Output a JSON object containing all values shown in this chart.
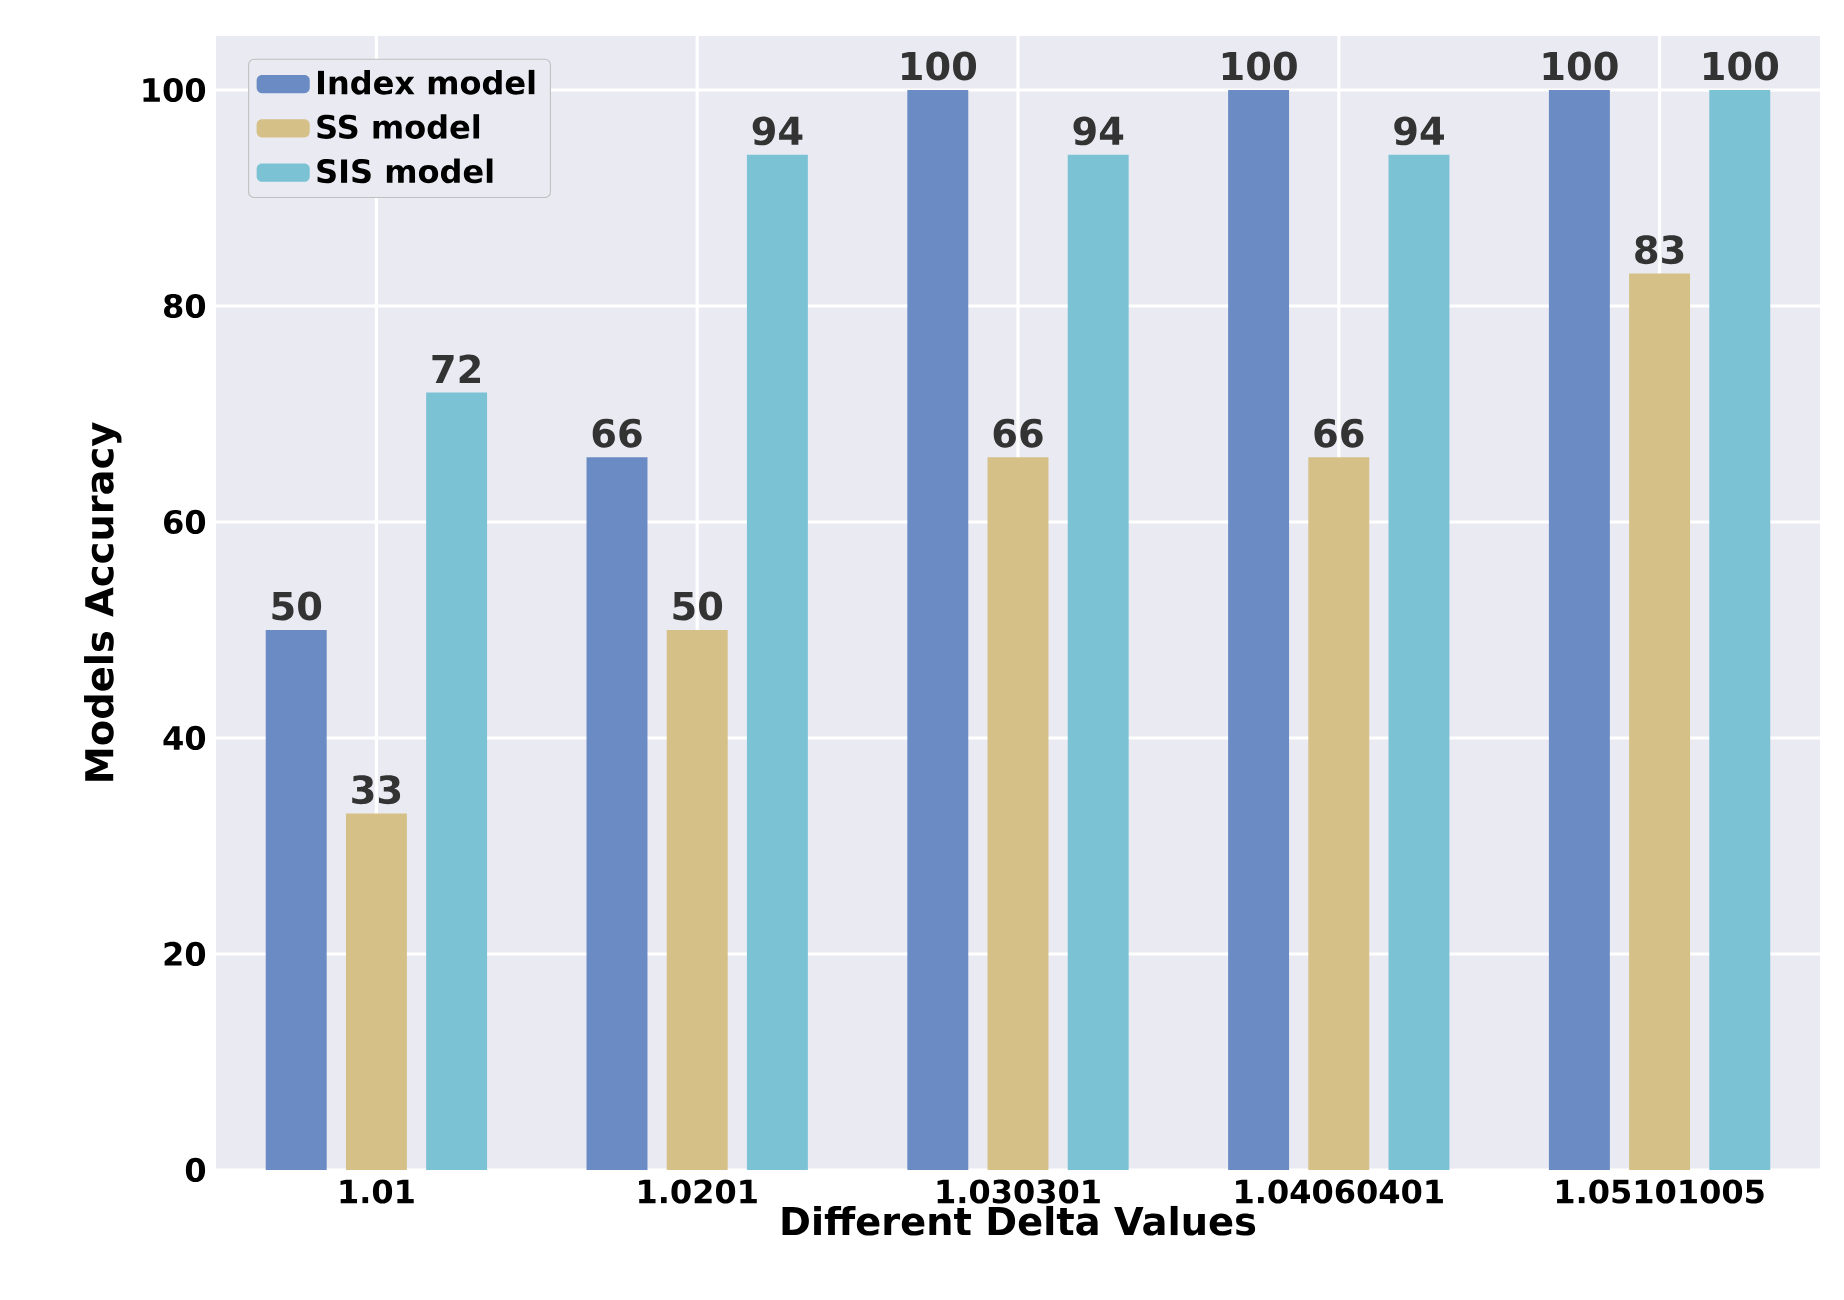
{
  "chart_data": {
    "type": "bar",
    "xlabel": "Different Delta Values",
    "ylabel": "Models Accuracy",
    "categories": [
      "1.01",
      "1.0201",
      "1.030301",
      "1.04060401",
      "1.05101005"
    ],
    "series": [
      {
        "name": "Index model",
        "color": "#6a8bc3",
        "values": [
          50,
          66,
          100,
          100,
          100
        ]
      },
      {
        "name": "SS model",
        "color": "#d5c088",
        "values": [
          33,
          50,
          66,
          66,
          83
        ]
      },
      {
        "name": "SIS model",
        "color": "#7cc2d5",
        "values": [
          72,
          94,
          94,
          94,
          100
        ]
      }
    ],
    "ylim": [
      0,
      105
    ],
    "yticks": [
      0,
      20,
      40,
      60,
      80,
      100
    ],
    "grid": true,
    "legend": "top left",
    "data_labels": true
  }
}
